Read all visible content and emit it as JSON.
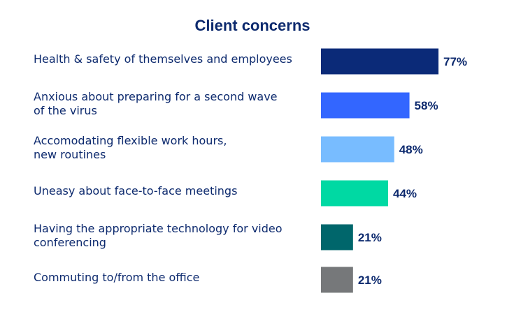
{
  "chart_data": {
    "type": "bar",
    "orientation": "horizontal",
    "title": "Client concerns",
    "categories": [
      "Health & safety of themselves and employees",
      "Anxious about preparing for a second wave of the virus",
      "Accomodating flexible work hours, new routines",
      "Uneasy about face-to-face meetings",
      "Having the appropriate technology for video conferencing",
      "Commuting to/from the office"
    ],
    "label_lines": [
      [
        "Health & safety of themselves and employees"
      ],
      [
        "Anxious about preparing for a second wave",
        "of the virus"
      ],
      [
        "Accomodating flexible work hours,",
        "new routines"
      ],
      [
        "Uneasy about face-to-face meetings"
      ],
      [
        "Having the appropriate technology for video",
        "conferencing"
      ],
      [
        "Commuting to/from the office"
      ]
    ],
    "values": [
      77,
      58,
      48,
      44,
      21,
      21
    ],
    "value_labels": [
      "77%",
      "58%",
      "48%",
      "44%",
      "21%",
      "21%"
    ],
    "colors": [
      "#0b2a78",
      "#3366ff",
      "#78bcff",
      "#00d9a3",
      "#00666b",
      "#76787a"
    ],
    "unit": "%",
    "grid": false,
    "legend": "none"
  }
}
